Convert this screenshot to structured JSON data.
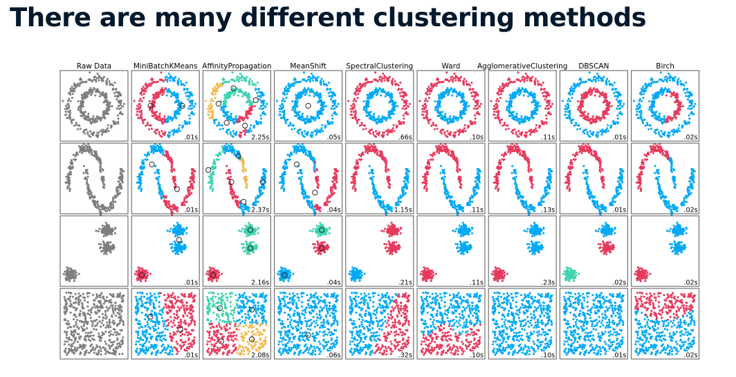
{
  "slide": {
    "title": "There are many different clustering methods"
  },
  "colors": {
    "gray": "#7f7f7f",
    "blue": "#03a9f4",
    "red": "#e63b5d",
    "teal": "#3fd3b0",
    "orange": "#f2b84b",
    "frame": "#555555",
    "title": "#05192d"
  },
  "methods": [
    "Raw Data",
    "MiniBatchKMeans",
    "AffinityPropagation",
    "MeanShift",
    "SpectralClustering",
    "Ward",
    "AgglomerativeClustering",
    "DBSCAN",
    "Birch"
  ],
  "datasets": [
    "circles",
    "moons",
    "blobs",
    "uniform"
  ],
  "timings": [
    [
      "",
      ".01s",
      "2.25s",
      ".05s",
      ".66s",
      ".10s",
      ".11s",
      ".01s",
      ".02s"
    ],
    [
      "",
      ".01s",
      "2.37s",
      ".04s",
      "1.15s",
      ".11s",
      ".13s",
      ".01s",
      ".02s"
    ],
    [
      "",
      ".01s",
      "2.16s",
      ".04s",
      ".21s",
      ".11s",
      ".23s",
      ".02s",
      ".02s"
    ],
    [
      "",
      ".01s",
      "2.08s",
      ".06s",
      ".32s",
      ".10s",
      ".10s",
      ".01s",
      ".02s"
    ]
  ]
}
